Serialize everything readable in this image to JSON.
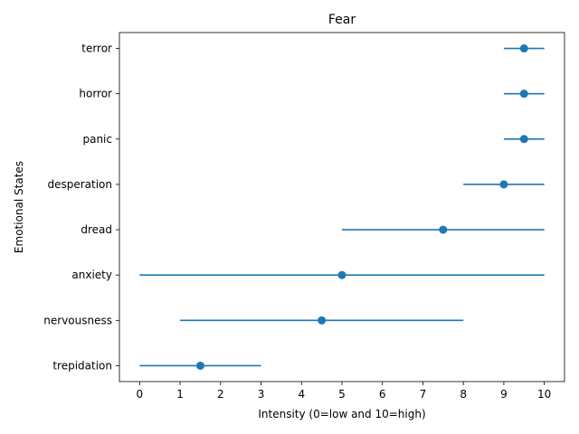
{
  "chart_data": {
    "type": "errorbar",
    "title": "Fear",
    "xlabel": "Intensity (0=low and 10=high)",
    "ylabel": "Emotional States",
    "xlim": [
      -0.5,
      10.5
    ],
    "xticks": [
      "0",
      "1",
      "2",
      "3",
      "4",
      "5",
      "6",
      "7",
      "8",
      "9",
      "10"
    ],
    "color": "#1f77b4",
    "grid": false,
    "categories": [
      "trepidation",
      "nervousness",
      "anxiety",
      "dread",
      "desperation",
      "panic",
      "horror",
      "terror"
    ],
    "values": [
      1.5,
      4.5,
      5,
      7.5,
      9,
      9.5,
      9.5,
      9.5
    ],
    "low": [
      0,
      1,
      0,
      5,
      8,
      9,
      9,
      9
    ],
    "high": [
      3,
      8,
      10,
      10,
      10,
      10,
      10,
      10
    ]
  }
}
